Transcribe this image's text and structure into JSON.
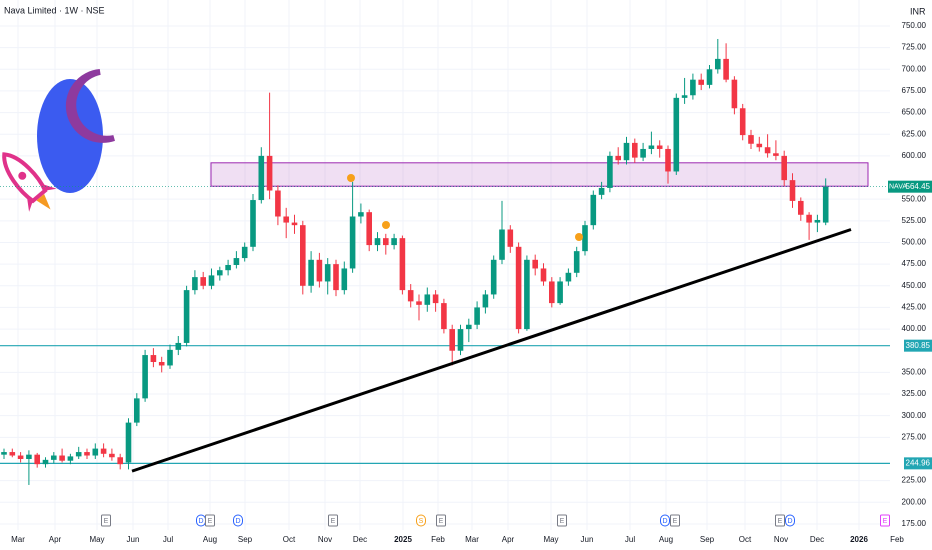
{
  "chart_data": {
    "type": "candlestick",
    "title": "Nava Limited · 1W · NSE",
    "currency": "INR",
    "symbol": "NAVA",
    "up_color": "#089981",
    "down_color": "#f23645",
    "grid": true,
    "open": [
      255,
      258,
      254,
      250,
      255,
      244,
      249,
      254,
      248,
      253,
      258,
      254,
      262,
      256,
      252,
      246,
      292,
      320,
      370,
      362,
      358,
      376,
      384,
      445,
      460,
      450,
      462,
      468,
      474,
      482,
      495,
      549,
      600,
      560,
      530,
      523,
      520,
      450,
      480,
      455,
      475,
      445,
      470,
      530,
      535,
      497,
      505,
      497,
      505,
      445,
      432,
      428,
      440,
      430,
      400,
      375,
      400,
      405,
      425,
      440,
      480,
      515,
      495,
      400,
      480,
      470,
      455,
      430,
      455,
      465,
      490,
      520,
      555,
      563,
      600,
      595,
      615,
      598,
      608,
      612,
      608,
      582,
      667,
      670,
      688,
      682,
      700,
      712,
      688,
      655,
      624,
      614,
      610,
      603,
      600,
      572,
      548,
      532,
      523,
      523
    ],
    "high": [
      262,
      262,
      258,
      260,
      257,
      252,
      258,
      262,
      256,
      264,
      262,
      268,
      268,
      262,
      256,
      297,
      326,
      376,
      378,
      368,
      382,
      392,
      450,
      468,
      466,
      470,
      472,
      480,
      490,
      500,
      556,
      610,
      673,
      566,
      540,
      532,
      525,
      490,
      488,
      482,
      480,
      478,
      570,
      545,
      538,
      512,
      510,
      510,
      508,
      452,
      440,
      448,
      445,
      435,
      405,
      405,
      412,
      432,
      445,
      485,
      548,
      520,
      500,
      485,
      486,
      476,
      460,
      460,
      470,
      495,
      525,
      560,
      570,
      605,
      610,
      622,
      620,
      615,
      628,
      618,
      612,
      672,
      690,
      695,
      695,
      705,
      735,
      730,
      692,
      660,
      630,
      622,
      625,
      618,
      606,
      580,
      552,
      535,
      532,
      574
    ],
    "low": [
      250,
      252,
      246,
      220,
      240,
      240,
      245,
      246,
      244,
      250,
      250,
      250,
      252,
      248,
      238,
      238,
      288,
      316,
      356,
      350,
      354,
      370,
      380,
      440,
      446,
      446,
      456,
      462,
      470,
      478,
      490,
      545,
      550,
      520,
      505,
      510,
      440,
      442,
      448,
      440,
      438,
      440,
      465,
      522,
      490,
      490,
      486,
      492,
      440,
      425,
      410,
      420,
      420,
      395,
      358,
      370,
      385,
      400,
      418,
      435,
      475,
      488,
      395,
      398,
      462,
      450,
      425,
      428,
      450,
      460,
      485,
      515,
      550,
      558,
      590,
      590,
      592,
      594,
      602,
      598,
      568,
      578,
      660,
      665,
      676,
      678,
      695,
      685,
      648,
      618,
      608,
      605,
      598,
      595,
      565,
      540,
      525,
      503,
      512,
      520
    ],
    "close": [
      258,
      254,
      250,
      255,
      244,
      249,
      254,
      248,
      253,
      258,
      254,
      262,
      256,
      252,
      244,
      292,
      320,
      370,
      362,
      358,
      376,
      384,
      445,
      460,
      450,
      462,
      468,
      474,
      482,
      495,
      549,
      600,
      560,
      530,
      523,
      520,
      450,
      480,
      455,
      475,
      445,
      470,
      530,
      535,
      497,
      505,
      497,
      505,
      445,
      432,
      428,
      440,
      430,
      400,
      375,
      400,
      405,
      425,
      440,
      480,
      515,
      495,
      400,
      480,
      470,
      455,
      430,
      455,
      465,
      490,
      520,
      555,
      563,
      600,
      595,
      615,
      598,
      608,
      612,
      608,
      582,
      667,
      670,
      688,
      682,
      700,
      712,
      688,
      655,
      624,
      614,
      610,
      603,
      600,
      572,
      548,
      532,
      523,
      526,
      564.45
    ],
    "last_price": 564.45,
    "levels": [
      380.85,
      244.96
    ],
    "zone": [
      565,
      592
    ],
    "trendline": [
      236,
      515
    ],
    "ylim": [
      168,
      780
    ],
    "yticks": [
      {
        "value": 175,
        "label": "175.00"
      },
      {
        "value": 200,
        "label": "200.00"
      },
      {
        "value": 225,
        "label": "225.00"
      },
      {
        "value": 275,
        "label": "275.00"
      },
      {
        "value": 300,
        "label": "300.00"
      },
      {
        "value": 325,
        "label": "325.00"
      },
      {
        "value": 350,
        "label": "350.00"
      },
      {
        "value": 400,
        "label": "400.00"
      },
      {
        "value": 425,
        "label": "425.00"
      },
      {
        "value": 450,
        "label": "450.00"
      },
      {
        "value": 475,
        "label": "475.00"
      },
      {
        "value": 500,
        "label": "500.00"
      },
      {
        "value": 525,
        "label": "525.00"
      },
      {
        "value": 550,
        "label": "550.00"
      },
      {
        "value": 600,
        "label": "600.00"
      },
      {
        "value": 625,
        "label": "625.00"
      },
      {
        "value": 650,
        "label": "650.00"
      },
      {
        "value": 675,
        "label": "675.00"
      },
      {
        "value": 700,
        "label": "700.00"
      },
      {
        "value": 725,
        "label": "725.00"
      },
      {
        "value": 750,
        "label": "750.00"
      }
    ],
    "xticks": [
      "Mar",
      "Apr",
      "May",
      "Jun",
      "Jul",
      "Aug",
      "Sep",
      "Oct",
      "Nov",
      "Dec",
      "2025",
      "Feb",
      "Mar",
      "Apr",
      "May",
      "Jun",
      "Jul",
      "Aug",
      "Sep",
      "Oct",
      "Nov",
      "Dec",
      "2026",
      "Feb"
    ],
    "events": [
      "E",
      "D",
      "E",
      "D",
      "E",
      "S",
      "E",
      "E",
      "D",
      "E",
      "E",
      "D",
      "E"
    ]
  }
}
